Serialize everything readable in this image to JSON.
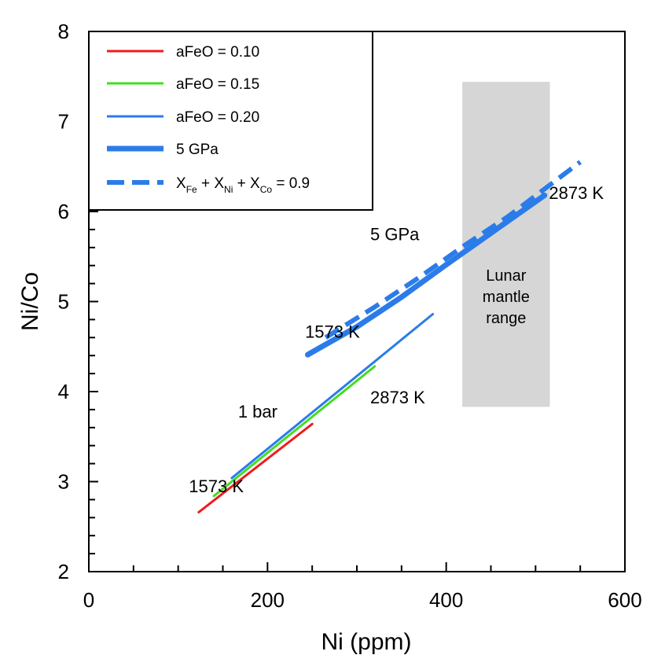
{
  "chart_data": {
    "type": "line",
    "xlabel": "Ni (ppm)",
    "ylabel": "Ni/Co",
    "xlim": [
      0,
      600
    ],
    "ylim": [
      2,
      8
    ],
    "xticks": [
      0,
      200,
      400,
      600
    ],
    "yticks": [
      2,
      3,
      4,
      5,
      6,
      7,
      8
    ],
    "colors": {
      "red": "#ee1c1c",
      "green": "#44dd22",
      "blue": "#2b7ce9",
      "shade": "#d6d6d6"
    },
    "series": [
      {
        "name": "aFeO = 0.10",
        "color": "#ee1c1c",
        "style": "thin",
        "x": [
          123,
          250
        ],
        "y": [
          2.66,
          3.64
        ]
      },
      {
        "name": "aFeO = 0.15",
        "color": "#44dd22",
        "style": "thin",
        "x": [
          140,
          320
        ],
        "y": [
          2.84,
          4.28
        ]
      },
      {
        "name": "aFeO = 0.20",
        "color": "#2b7ce9",
        "style": "thin",
        "x": [
          160,
          385
        ],
        "y": [
          3.04,
          4.86
        ]
      },
      {
        "name": "5 GPa",
        "color": "#2b7ce9",
        "style": "thick",
        "x": [
          245,
          300,
          350,
          400,
          450,
          510
        ],
        "y": [
          4.41,
          4.72,
          5.05,
          5.41,
          5.76,
          6.18
        ]
      },
      {
        "name": "X_Fe + X_Ni + X_Co = 0.9",
        "color": "#2b7ce9",
        "style": "dashed",
        "x": [
          265,
          320,
          370,
          420,
          470,
          550
        ],
        "y": [
          4.6,
          4.94,
          5.27,
          5.62,
          5.95,
          6.55
        ]
      }
    ],
    "shaded_region": {
      "label_lines": [
        "Lunar",
        "mantle",
        "range"
      ],
      "x": [
        418,
        516
      ],
      "y": [
        3.83,
        7.44
      ]
    },
    "annotations": [
      {
        "text": "2873 K",
        "x": 515,
        "y": 6.14
      },
      {
        "text": "5 GPa",
        "x": 315,
        "y": 5.68
      },
      {
        "text": "1573 K",
        "x": 242,
        "y": 4.6
      },
      {
        "text": "2873 K",
        "x": 315,
        "y": 3.87
      },
      {
        "text": "1 bar",
        "x": 167,
        "y": 3.71
      },
      {
        "text": "1573 K",
        "x": 112,
        "y": 2.88
      }
    ],
    "legend": {
      "position": "top-left",
      "entries": [
        {
          "label": "aFeO = 0.10",
          "series": 0
        },
        {
          "label": "aFeO = 0.15",
          "series": 1
        },
        {
          "label": "aFeO = 0.20",
          "series": 2
        },
        {
          "label": "5 GPa",
          "series": 3
        },
        {
          "label_parts": [
            "X",
            "Fe",
            " + X",
            "Ni",
            " + X",
            "Co",
            " = 0.9"
          ],
          "series": 4
        }
      ]
    }
  }
}
